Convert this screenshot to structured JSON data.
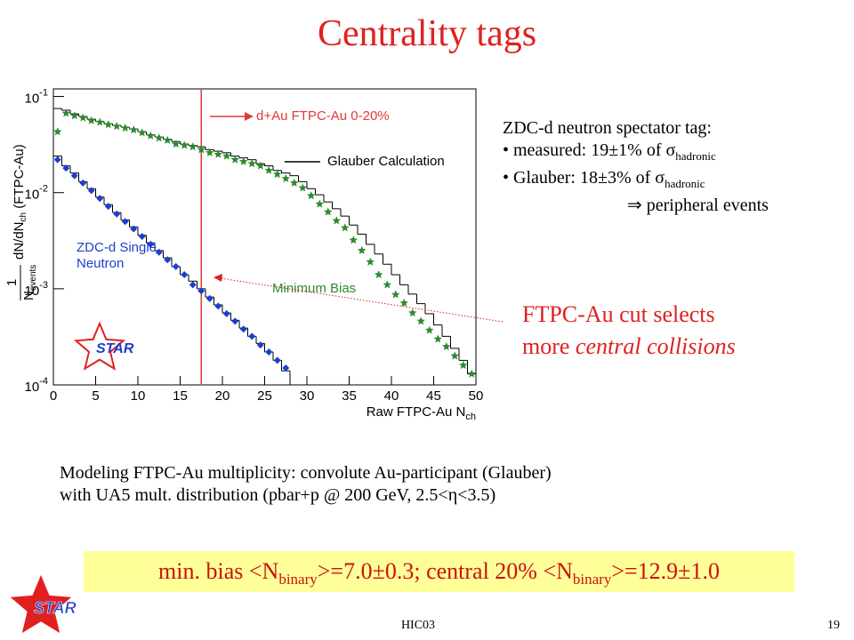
{
  "slide": {
    "title": "Centrality tags",
    "notes": {
      "heading": "ZDC-d neutron spectator tag:",
      "items": [
        {
          "text": "• measured: 19±1% of σ",
          "sub": "hadronic"
        },
        {
          "text": "• Glauber: 18±3% of σ",
          "sub": "hadronic"
        }
      ],
      "conclusion": "⇒ peripheral events"
    },
    "callout": {
      "line1": "FTPC-Au cut selects",
      "line2_plain": "more",
      "line2_italic": "central collisions"
    },
    "modeling": [
      "Modeling FTPC-Au multiplicity: convolute Au-participant (Glauber)",
      "with UA5 mult. distribution (pbar+p @ 200 GeV, 2.5<η<3.5)"
    ],
    "result": [
      "min. bias <N",
      "binary",
      ">=7.0±0.3; central 20% <N",
      "binary",
      ">=12.9±1.0"
    ],
    "footer": "HIC03",
    "page": "19",
    "logo": "STAR"
  },
  "chart_data": {
    "type": "scatter",
    "yscale": "log",
    "xlim": [
      0,
      50
    ],
    "ylim": [
      0.0001,
      0.12
    ],
    "xticks": [
      0,
      5,
      10,
      15,
      20,
      25,
      30,
      35,
      40,
      45,
      50
    ],
    "yticks": [
      {
        "value": 0.0001,
        "label": "10",
        "exponent": "-4"
      },
      {
        "value": 0.001,
        "label": "10",
        "exponent": "-3"
      },
      {
        "value": 0.01,
        "label": "10",
        "exponent": "-2"
      },
      {
        "value": 0.1,
        "label": "10",
        "exponent": "-1"
      }
    ],
    "xlabel": {
      "text": "Raw FTPC-Au  N",
      "sub": "ch"
    },
    "ylabel": {
      "numerator": "1",
      "denominator": "N",
      "denominator_sub": "events",
      "text": "dN/dN",
      "sub": "ch",
      "suffix": " (FTPC-Au)"
    },
    "series": [
      {
        "name": "Minimum Bias",
        "color": "#2e8b2e",
        "marker": "star",
        "x": [
          0.5,
          1.5,
          2.5,
          3.5,
          4.5,
          5.5,
          6.5,
          7.5,
          8.5,
          9.5,
          10.5,
          11.5,
          12.5,
          13.5,
          14.5,
          15.5,
          16.5,
          17.5,
          18.5,
          19.5,
          20.5,
          21.5,
          22.5,
          23.5,
          24.5,
          25.5,
          26.5,
          27.5,
          28.5,
          29.5,
          30.5,
          31.5,
          32.5,
          33.5,
          34.5,
          35.5,
          36.5,
          37.5,
          38.5,
          39.5,
          40.5,
          41.5,
          42.5,
          43.5,
          44.5,
          45.5,
          46.5,
          47.5,
          48.5,
          49.5
        ],
        "values": [
          0.043,
          0.067,
          0.063,
          0.06,
          0.056,
          0.054,
          0.051,
          0.049,
          0.047,
          0.045,
          0.042,
          0.039,
          0.037,
          0.035,
          0.032,
          0.031,
          0.03,
          0.028,
          0.026,
          0.025,
          0.024,
          0.022,
          0.021,
          0.02,
          0.019,
          0.017,
          0.0155,
          0.014,
          0.0126,
          0.0112,
          0.0093,
          0.0076,
          0.0063,
          0.0051,
          0.0043,
          0.0032,
          0.0025,
          0.0019,
          0.0014,
          0.0011,
          0.00087,
          0.00071,
          0.00056,
          0.00046,
          0.00037,
          0.0003,
          0.00025,
          0.0002,
          0.00016,
          0.00013
        ]
      },
      {
        "name": "ZDC-d Single Neutron",
        "color": "#1a3fd0",
        "marker": "diamond",
        "x": [
          0.5,
          1.5,
          2.5,
          3.5,
          4.5,
          5.5,
          6.5,
          7.5,
          8.5,
          9.5,
          10.5,
          11.5,
          12.5,
          13.5,
          14.5,
          15.5,
          16.5,
          17.5,
          18.5,
          19.5,
          20.5,
          21.5,
          22.5,
          23.5,
          24.5,
          25.5,
          26.5,
          27.5
        ],
        "values": [
          0.022,
          0.018,
          0.015,
          0.0126,
          0.0105,
          0.0087,
          0.0072,
          0.006,
          0.005,
          0.0042,
          0.0035,
          0.0029,
          0.0024,
          0.002,
          0.0017,
          0.0014,
          0.0011,
          0.00095,
          0.00079,
          0.00066,
          0.00055,
          0.00046,
          0.00038,
          0.00032,
          0.00026,
          0.00022,
          0.00018,
          0.00015
        ]
      }
    ],
    "histograms": [
      {
        "name": "Glauber Calculation",
        "color": "#000000",
        "bins": [
          0,
          1,
          2,
          3,
          4,
          5,
          6,
          7,
          8,
          9,
          10,
          11,
          12,
          13,
          14,
          15,
          16,
          17,
          18,
          19,
          20,
          21,
          22,
          23,
          24,
          25,
          26,
          27,
          28,
          29,
          30,
          31,
          32,
          33,
          34,
          35,
          36,
          37,
          38,
          39,
          40,
          41,
          42,
          43,
          44,
          45,
          46,
          47,
          48,
          49,
          50
        ],
        "counts": [
          0.075,
          0.072,
          0.066,
          0.062,
          0.058,
          0.055,
          0.052,
          0.05,
          0.048,
          0.046,
          0.043,
          0.04,
          0.038,
          0.036,
          0.034,
          0.032,
          0.031,
          0.03,
          0.028,
          0.027,
          0.026,
          0.024,
          0.023,
          0.022,
          0.02,
          0.019,
          0.017,
          0.016,
          0.015,
          0.013,
          0.011,
          0.0095,
          0.008,
          0.0068,
          0.0057,
          0.0046,
          0.0037,
          0.0029,
          0.0023,
          0.0018,
          0.0014,
          0.0011,
          0.00088,
          0.0007,
          0.00055,
          0.00042,
          0.00032,
          0.00024,
          0.00018,
          0.00013
        ]
      },
      {
        "color": "#000000",
        "bins": [
          0,
          1,
          2,
          3,
          4,
          5,
          6,
          7,
          8,
          9,
          10,
          11,
          12,
          13,
          14,
          15,
          16,
          17,
          18,
          19,
          20,
          21,
          22,
          23,
          24,
          25,
          26,
          27,
          28
        ],
        "counts": [
          0.024,
          0.019,
          0.016,
          0.013,
          0.011,
          0.009,
          0.0075,
          0.0062,
          0.0052,
          0.0044,
          0.0036,
          0.003,
          0.0025,
          0.0021,
          0.0017,
          0.0014,
          0.0012,
          0.001,
          0.00082,
          0.00068,
          0.00056,
          0.00047,
          0.00039,
          0.00032,
          0.00027,
          0.00022,
          0.00018,
          0.00014
        ]
      }
    ],
    "cut": {
      "x": 17.5,
      "label": "d+Au FTPC-Au 0-20%",
      "color": "#e03a3a"
    }
  }
}
